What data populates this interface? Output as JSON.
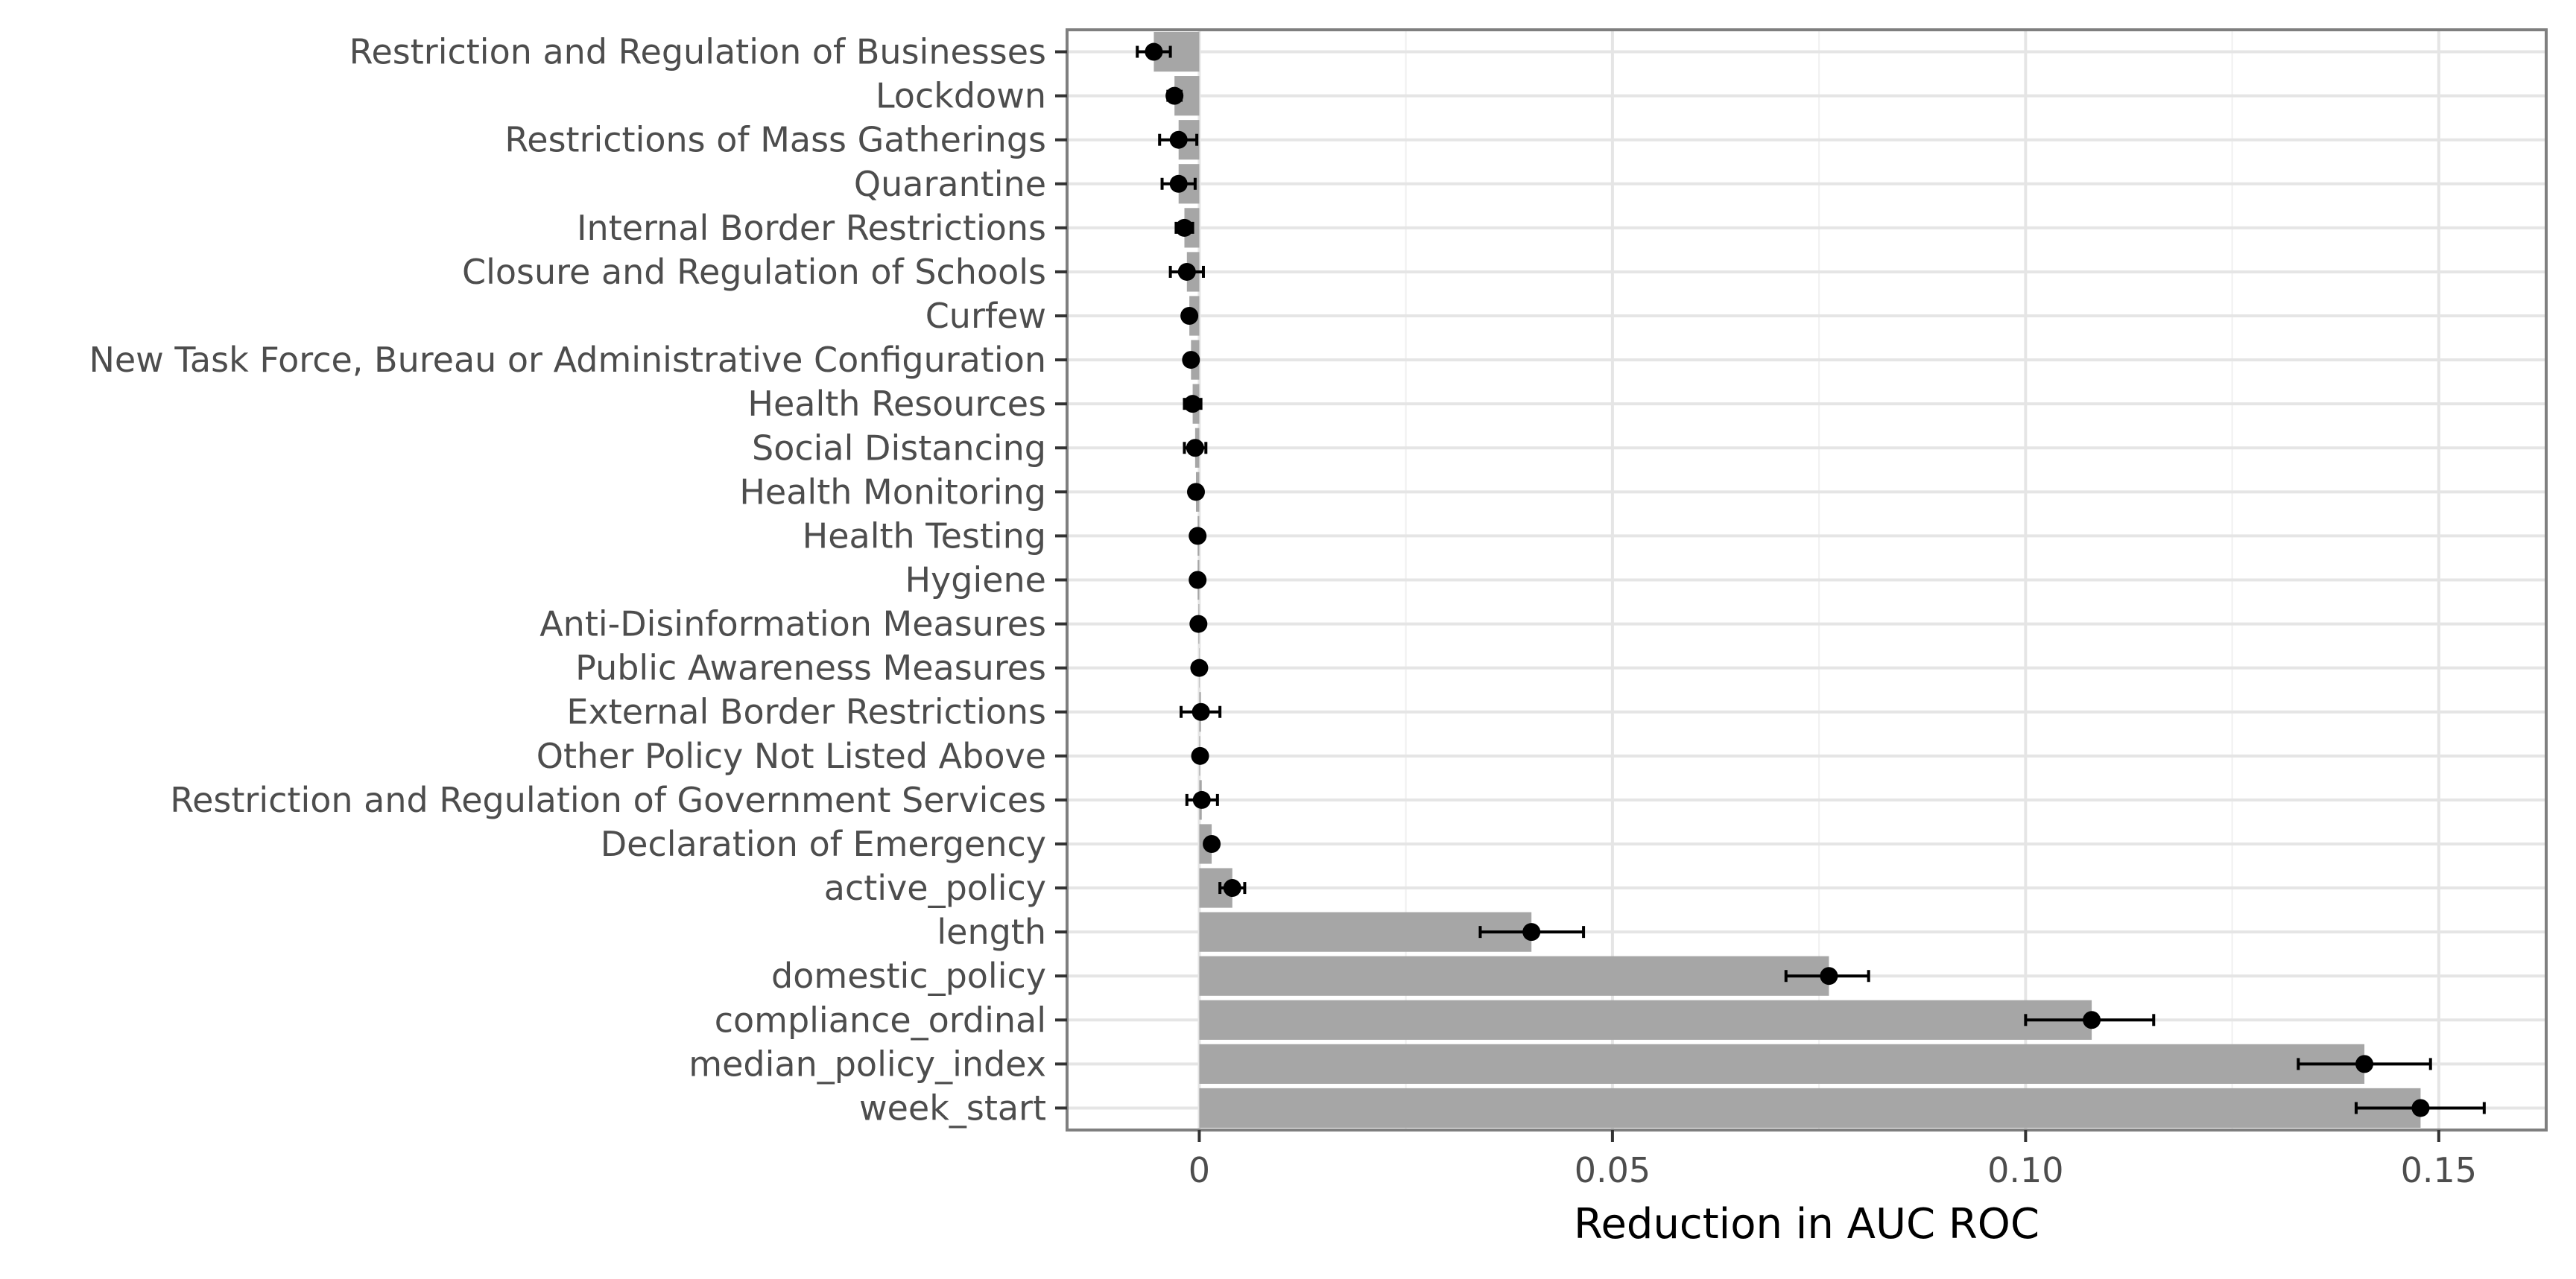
{
  "chart_data": {
    "type": "bar",
    "orientation": "horizontal",
    "title": "",
    "xlabel": "Reduction in AUC ROC",
    "ylabel": "",
    "xlim": [
      -0.016,
      0.163
    ],
    "x_ticks": [
      0,
      0.05,
      0.1,
      0.15
    ],
    "x_tick_labels": [
      "0",
      "0.05",
      "0.10",
      "0.15"
    ],
    "grid": true,
    "legend": "none",
    "bar_color": "#a6a6a6",
    "point_color": "#000000",
    "categories": [
      "Restriction and Regulation of Businesses",
      "Lockdown",
      "Restrictions of Mass Gatherings",
      "Quarantine",
      "Internal Border Restrictions",
      "Closure and Regulation of Schools",
      "Curfew",
      "New Task Force, Bureau or Administrative Configuration",
      "Health Resources",
      "Social Distancing",
      "Health Monitoring",
      "Health Testing",
      "Hygiene",
      "Anti-Disinformation Measures",
      "Public Awareness Measures",
      "External Border Restrictions",
      "Other Policy Not Listed Above",
      "Restriction and Regulation of Government Services",
      "Declaration of Emergency",
      "active_policy",
      "length",
      "domestic_policy",
      "compliance_ordinal",
      "median_policy_index",
      "week_start"
    ],
    "values": [
      -0.0055,
      -0.003,
      -0.0025,
      -0.0025,
      -0.0018,
      -0.0015,
      -0.0012,
      -0.001,
      -0.0008,
      -0.0005,
      -0.0004,
      -0.0002,
      -0.0002,
      -0.0001,
      0.0,
      0.0002,
      0.0001,
      0.0003,
      0.0015,
      0.004,
      0.0402,
      0.0762,
      0.108,
      0.141,
      0.1478
    ],
    "error_low": [
      -0.0075,
      -0.0038,
      -0.0048,
      -0.0045,
      -0.0028,
      -0.0035,
      -0.0015,
      -0.0013,
      -0.0018,
      -0.0018,
      -0.0006,
      -0.0004,
      -0.0003,
      -0.0002,
      -0.0001,
      -0.0022,
      0.0,
      -0.0015,
      0.001,
      0.0025,
      0.034,
      0.071,
      0.1,
      0.133,
      0.14
    ],
    "error_high": [
      -0.0035,
      -0.0022,
      -0.0003,
      -0.0005,
      -0.0008,
      0.0005,
      -0.0009,
      -0.0007,
      0.0002,
      0.0008,
      -0.0002,
      0.0,
      -0.0001,
      0.0,
      0.0001,
      0.0025,
      0.0002,
      0.0022,
      0.002,
      0.0055,
      0.0465,
      0.081,
      0.1155,
      0.149,
      0.1555
    ]
  }
}
